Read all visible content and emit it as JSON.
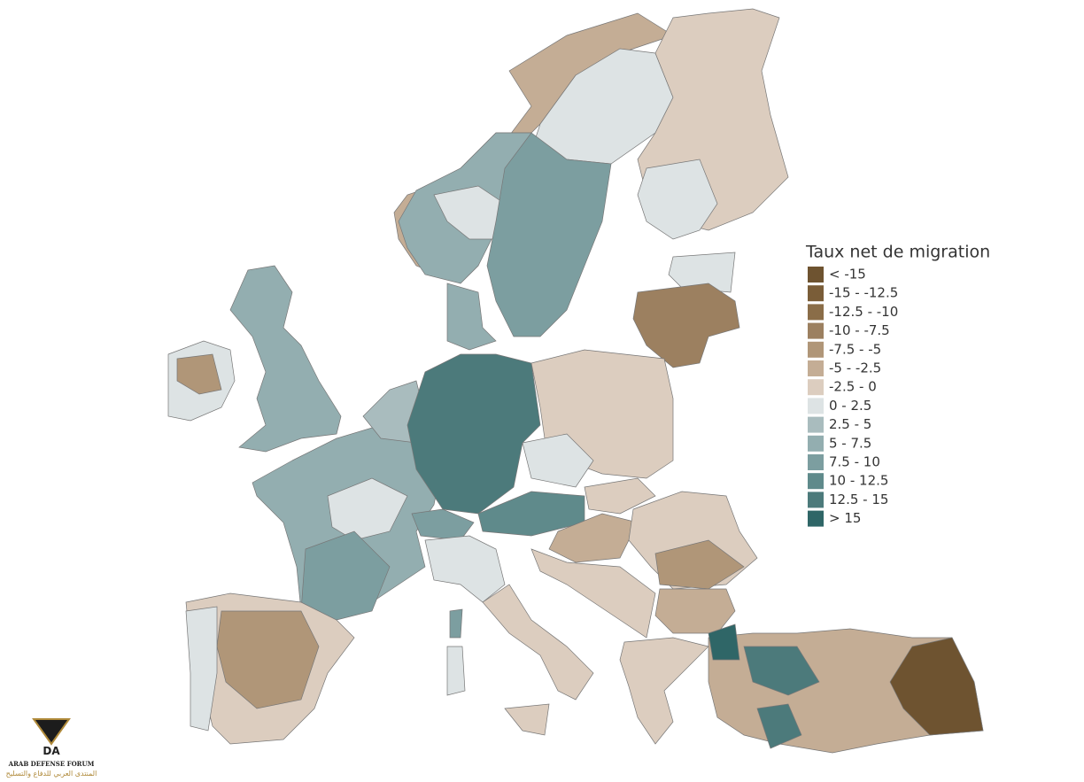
{
  "legend": {
    "title": "Taux net de migration",
    "items": [
      {
        "label": "< -15",
        "color": "#6e5330"
      },
      {
        "label": "-15 - -12.5",
        "color": "#7a5d38"
      },
      {
        "label": "-12.5 - -10",
        "color": "#8a6d48"
      },
      {
        "label": "-10 - -7.5",
        "color": "#9c8060"
      },
      {
        "label": "-7.5 - -5",
        "color": "#b09678"
      },
      {
        "label": "-5 - -2.5",
        "color": "#c4ad95"
      },
      {
        "label": "-2.5 - 0",
        "color": "#dccdbf"
      },
      {
        "label": "0 - 2.5",
        "color": "#dde3e4"
      },
      {
        "label": "2.5 - 5",
        "color": "#a9bcbe"
      },
      {
        "label": "5 - 7.5",
        "color": "#93aeb0"
      },
      {
        "label": "7.5 - 10",
        "color": "#7c9ea0"
      },
      {
        "label": "10 - 12.5",
        "color": "#5f8a8b"
      },
      {
        "label": "12.5 - 15",
        "color": "#4c7a7b"
      },
      {
        "label": "> 15",
        "color": "#2f6667"
      }
    ]
  },
  "watermark": {
    "logo": "DA",
    "name": "ARAB DEFENSE FORUM",
    "arabic": "المنتدى العربي للدفاع والتسليح"
  }
}
